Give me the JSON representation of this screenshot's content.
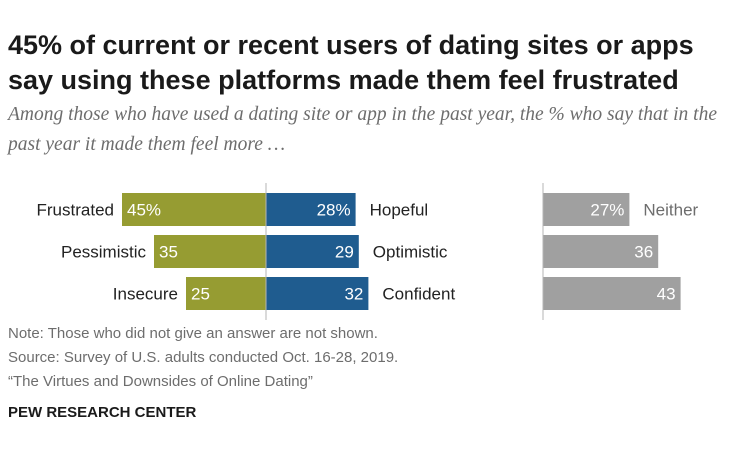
{
  "title": "45% of current or recent users of dating sites or apps say using these platforms made them feel frustrated",
  "subtitle": "Among those who have used a dating site or app in the past year, the % who say that in the past year it made them feel more …",
  "notes": {
    "note": "Note: Those who did not give an answer are not shown.",
    "source": "Source: Survey of U.S. adults conducted Oct. 16-28, 2019.",
    "report": "“The Virtues and Downsides of Online Dating”"
  },
  "brand": "PEW RESEARCH CENTER",
  "colors": {
    "negative": "#969c32",
    "positive": "#1f5c8f",
    "neither": "#a0a0a0"
  },
  "chart_data": {
    "type": "bar",
    "rows": [
      {
        "negative_label": "Frustrated",
        "negative_value": 45,
        "negative_text": "45%",
        "positive_label": "Hopeful",
        "positive_value": 28,
        "positive_text": "28%",
        "neither_value": 27,
        "neither_text": "27%"
      },
      {
        "negative_label": "Pessimistic",
        "negative_value": 35,
        "negative_text": "35",
        "positive_label": "Optimistic",
        "positive_value": 29,
        "positive_text": "29",
        "neither_value": 36,
        "neither_text": "36"
      },
      {
        "negative_label": "Insecure",
        "negative_value": 25,
        "negative_text": "25",
        "positive_label": "Confident",
        "positive_value": 32,
        "positive_text": "32",
        "neither_value": 43,
        "neither_text": "43"
      }
    ],
    "neither_label": "Neither"
  }
}
